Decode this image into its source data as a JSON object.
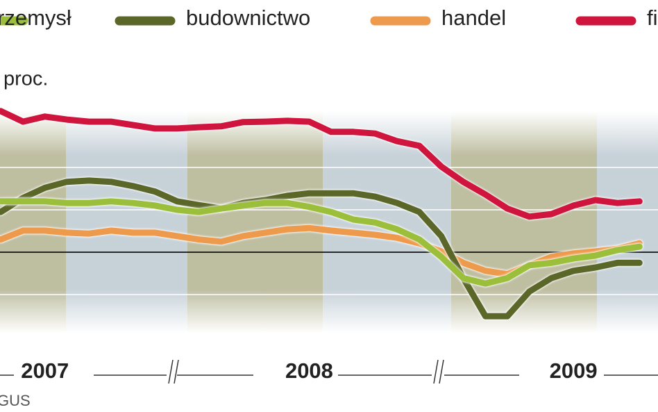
{
  "chart_data": {
    "type": "line",
    "y_label": "proc.",
    "source": "GUS",
    "x": [
      2007.333,
      2007.417,
      2007.5,
      2007.583,
      2007.667,
      2007.75,
      2007.833,
      2007.917,
      2008.0,
      2008.083,
      2008.167,
      2008.25,
      2008.333,
      2008.417,
      2008.5,
      2008.583,
      2008.667,
      2008.75,
      2008.833,
      2008.917,
      2009.0,
      2009.083,
      2009.167,
      2009.25,
      2009.333,
      2009.417,
      2009.5,
      2009.583,
      2009.667,
      2009.75
    ],
    "xlim": [
      2007.33,
      2009.82
    ],
    "xticks": [
      {
        "value": 2007.5,
        "label": "2007"
      },
      {
        "value": 2008.5,
        "label": "2008"
      },
      {
        "value": 2009.5,
        "label": "2009"
      }
    ],
    "ylim": [
      -18,
      38
    ],
    "yticks": [
      -10,
      0,
      10,
      20
    ],
    "grid": true,
    "series": [
      {
        "name": "rzemysł",
        "color": "#9bbf3b",
        "values": [
          12.0,
          12.0,
          12.0,
          11.6,
          11.6,
          12.0,
          11.6,
          11.0,
          10.0,
          9.5,
          10.3,
          11.0,
          11.6,
          11.6,
          10.7,
          9.5,
          7.7,
          7.0,
          5.4,
          3.0,
          -1.1,
          -6.1,
          -7.4,
          -6.1,
          -3.1,
          -2.5,
          -1.5,
          -0.8,
          0.5,
          1.3
        ]
      },
      {
        "name": "budownictwo",
        "color": "#5b6729",
        "values": [
          9.5,
          12.8,
          15.2,
          16.6,
          16.9,
          16.6,
          15.6,
          14.3,
          12.0,
          11.1,
          10.3,
          11.6,
          12.3,
          13.3,
          13.9,
          13.9,
          13.9,
          13.1,
          11.6,
          9.5,
          3.8,
          -6.1,
          -15.1,
          -15.1,
          -9.3,
          -6.1,
          -4.4,
          -3.6,
          -2.5,
          -2.5
        ]
      },
      {
        "name": "handel",
        "color": "#ee9a4c",
        "values": [
          3.0,
          5.1,
          5.1,
          4.6,
          4.4,
          5.1,
          4.6,
          4.6,
          3.8,
          3.0,
          2.5,
          3.8,
          4.6,
          5.4,
          5.7,
          5.1,
          4.6,
          4.1,
          3.4,
          2.1,
          0.2,
          -2.5,
          -4.4,
          -5.2,
          -3.1,
          -1.1,
          -0.3,
          0.2,
          0.8,
          2.1
        ]
      },
      {
        "name": "fi",
        "color": "#cf143d",
        "values": [
          33.3,
          30.8,
          32.0,
          31.3,
          30.8,
          30.8,
          30.0,
          29.2,
          29.2,
          29.5,
          29.7,
          30.7,
          30.8,
          31.0,
          30.8,
          28.4,
          28.4,
          28.0,
          26.2,
          25.1,
          20.2,
          16.6,
          13.6,
          10.3,
          8.4,
          9.0,
          11.0,
          12.3,
          11.6,
          12.0
        ]
      }
    ]
  }
}
